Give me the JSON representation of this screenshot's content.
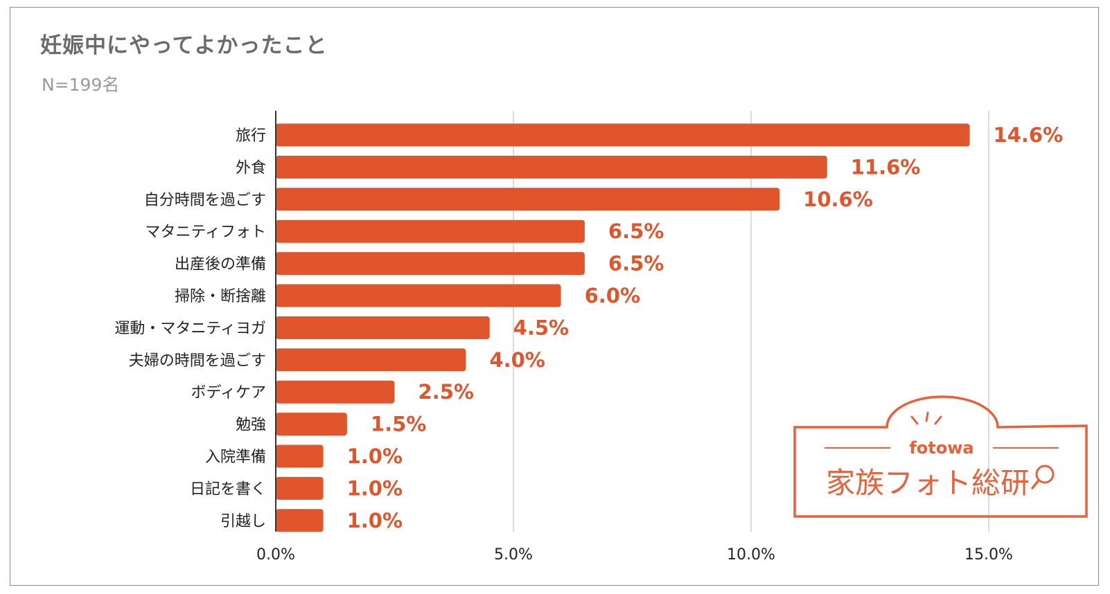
{
  "title": "妊娠中にやってよかったこと",
  "subtitle": "N=199名",
  "colors": {
    "bar": "#e0552b",
    "value_label": "#e0552b",
    "grid": "#cfcfcf",
    "axis": "#333333",
    "logo": "#e8613a"
  },
  "logo": {
    "brand": "fotowa",
    "name": "家族フォト総研"
  },
  "chart_data": {
    "type": "bar",
    "orientation": "horizontal",
    "categories": [
      "旅行",
      "外食",
      "自分時間を過ごす",
      "マタニティフォト",
      "出産後の準備",
      "掃除・断捨離",
      "運動・マタニティヨガ",
      "夫婦の時間を過ごす",
      "ボディケア",
      "勉強",
      "入院準備",
      "日記を書く",
      "引越し"
    ],
    "values": [
      14.6,
      11.6,
      10.6,
      6.5,
      6.5,
      6.0,
      4.5,
      4.0,
      2.5,
      1.5,
      1.0,
      1.0,
      1.0
    ],
    "value_labels": [
      "14.6%",
      "11.6%",
      "10.6%",
      "6.5%",
      "6.5%",
      "6.0%",
      "4.5%",
      "4.0%",
      "2.5%",
      "1.5%",
      "1.0%",
      "1.0%",
      "1.0%"
    ],
    "xlim": [
      0,
      17
    ],
    "xticks": [
      0,
      5,
      10,
      15
    ],
    "xtick_labels": [
      "0.0%",
      "5.0%",
      "10.0%",
      "15.0%"
    ],
    "grid": true,
    "legend": "none"
  }
}
